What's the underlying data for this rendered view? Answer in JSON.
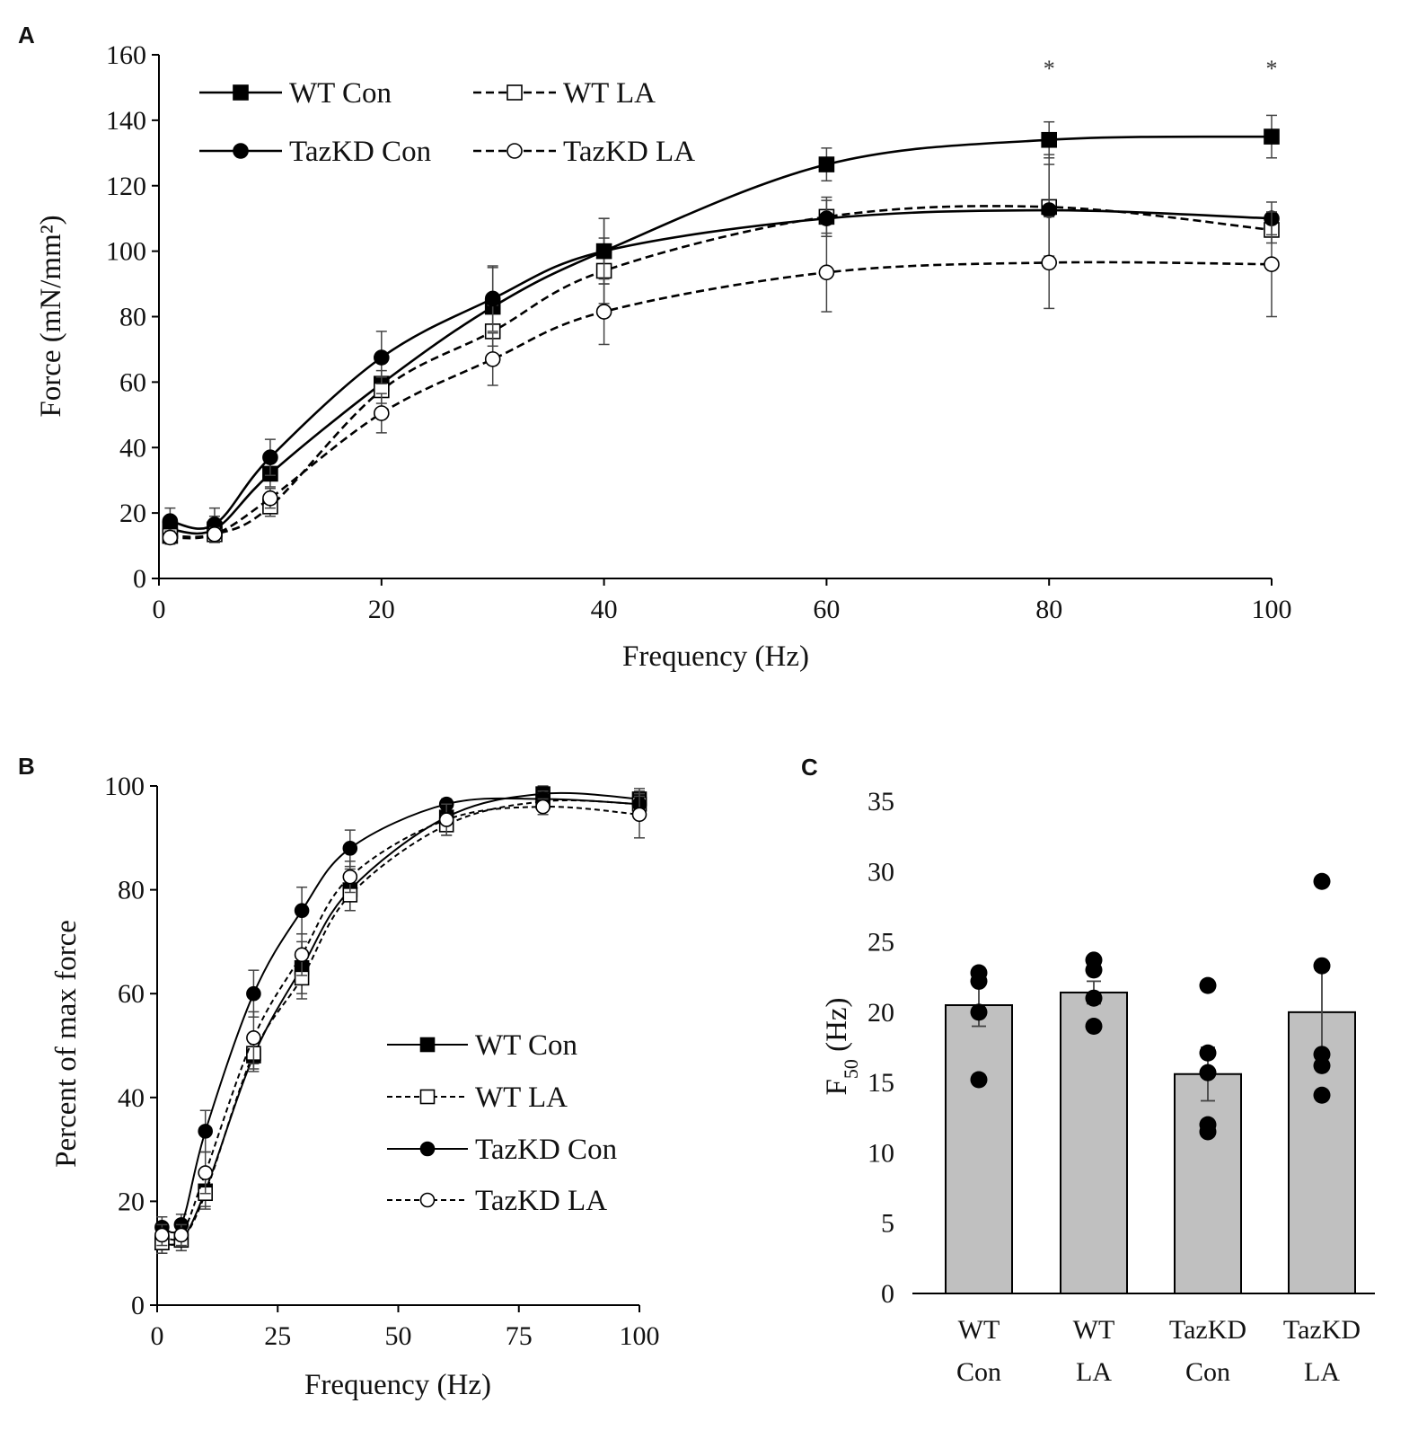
{
  "chart_data": [
    {
      "id": "A",
      "panel_label": "A",
      "type": "line",
      "xlabel": "Frequency (Hz)",
      "ylabel": "Force (mN/mm²)",
      "xlim": [
        0,
        100
      ],
      "ylim": [
        0,
        160
      ],
      "xticks": [
        0,
        20,
        40,
        60,
        80,
        100
      ],
      "yticks": [
        0,
        20,
        40,
        60,
        80,
        100,
        120,
        140,
        160
      ],
      "x": [
        1,
        5,
        10,
        20,
        30,
        40,
        60,
        80,
        100
      ],
      "series": [
        {
          "name": "WT Con",
          "marker": "square",
          "filled": true,
          "dashed": false,
          "color": "#000000",
          "values": [
            15,
            15,
            32,
            59.5,
            83,
            100,
            126.5,
            134,
            135
          ],
          "errors": [
            4,
            4,
            4,
            4,
            12,
            10,
            5,
            5.5,
            6.5
          ]
        },
        {
          "name": "WT LA",
          "marker": "square",
          "filled": false,
          "dashed": true,
          "color": "#000000",
          "values": [
            13,
            13.5,
            22,
            57.5,
            75.5,
            94,
            110.5,
            113.5,
            106.5
          ],
          "errors": [
            2,
            2,
            3,
            4,
            8,
            10,
            6,
            16,
            4
          ]
        },
        {
          "name": "TazKD Con",
          "marker": "circle",
          "filled": true,
          "dashed": false,
          "color": "#000000",
          "values": [
            17.5,
            16.5,
            37,
            67.5,
            85.5,
            100,
            110,
            112.5,
            110
          ],
          "errors": [
            4,
            5,
            5.5,
            8,
            10,
            10,
            5.5,
            14,
            5
          ]
        },
        {
          "name": "TazKD LA",
          "marker": "circle",
          "filled": false,
          "dashed": true,
          "color": "#000000",
          "values": [
            12.5,
            13.5,
            24.5,
            50.5,
            67,
            81.5,
            93.5,
            96.5,
            96
          ],
          "errors": [
            2,
            2,
            3,
            6,
            8,
            10,
            12,
            14,
            16
          ]
        }
      ],
      "annotations": [
        {
          "text": "*",
          "x": 80
        },
        {
          "text": "*",
          "x": 100
        }
      ]
    },
    {
      "id": "B",
      "panel_label": "B",
      "type": "line",
      "xlabel": "Frequency (Hz)",
      "ylabel": "Percent of max force",
      "xlim": [
        0,
        100
      ],
      "ylim": [
        0,
        100
      ],
      "xticks": [
        0,
        25,
        50,
        75,
        100
      ],
      "yticks": [
        0,
        20,
        40,
        60,
        80,
        100
      ],
      "x": [
        1,
        5,
        10,
        20,
        30,
        40,
        60,
        80,
        100
      ],
      "series": [
        {
          "name": "WT Con",
          "marker": "square",
          "filled": true,
          "dashed": false,
          "color": "#000000",
          "values": [
            12,
            12.5,
            22,
            48,
            65,
            80,
            94,
            98.5,
            97.5
          ],
          "errors": [
            2,
            2,
            3,
            3,
            5,
            4,
            2,
            1.5,
            2
          ]
        },
        {
          "name": "WT LA",
          "marker": "square",
          "filled": false,
          "dashed": true,
          "color": "#000000",
          "values": [
            12,
            12.5,
            21.5,
            48.5,
            63,
            79,
            92.5,
            97,
            96.5
          ],
          "errors": [
            2,
            2,
            3,
            3,
            4,
            3,
            2,
            1.5,
            2
          ]
        },
        {
          "name": "TazKD Con",
          "marker": "circle",
          "filled": true,
          "dashed": false,
          "color": "#000000",
          "values": [
            15,
            15.5,
            33.5,
            60,
            76,
            88,
            96.5,
            97.5,
            96.5
          ],
          "errors": [
            2,
            2,
            4,
            4.5,
            4.5,
            3.5,
            1,
            1.5,
            1.5
          ]
        },
        {
          "name": "TazKD LA",
          "marker": "circle",
          "filled": false,
          "dashed": true,
          "color": "#000000",
          "values": [
            13.5,
            13.5,
            25.5,
            51.5,
            67.5,
            82.5,
            93.5,
            96,
            94.5
          ],
          "errors": [
            2,
            2,
            4,
            5,
            4,
            3,
            3,
            1.5,
            4.5
          ]
        }
      ]
    },
    {
      "id": "C",
      "panel_label": "C",
      "type": "bar",
      "ylabel_main": "F",
      "ylabel_sub": "50",
      "ylabel_unit": " (Hz)",
      "ylim": [
        0,
        35
      ],
      "yticks": [
        0,
        5,
        10,
        15,
        20,
        25,
        30,
        35
      ],
      "categories": [
        {
          "line1": "WT",
          "line2": "Con"
        },
        {
          "line1": "WT",
          "line2": "LA"
        },
        {
          "line1": "TazKD",
          "line2": "Con"
        },
        {
          "line1": "TazKD",
          "line2": "LA"
        }
      ],
      "values": [
        20.5,
        21.4,
        15.6,
        20.0
      ],
      "errors": [
        1.5,
        0.8,
        1.9,
        3.0
      ],
      "points": [
        [
          22.8,
          22.2,
          20.0,
          15.2
        ],
        [
          23.7,
          23.0,
          21.0,
          19.0
        ],
        [
          21.9,
          17.1,
          15.7,
          12.0,
          11.5
        ],
        [
          29.3,
          23.3,
          17.0,
          16.2,
          14.1
        ]
      ],
      "bar_color": "#c0c0c0",
      "point_color": "#000000"
    }
  ]
}
